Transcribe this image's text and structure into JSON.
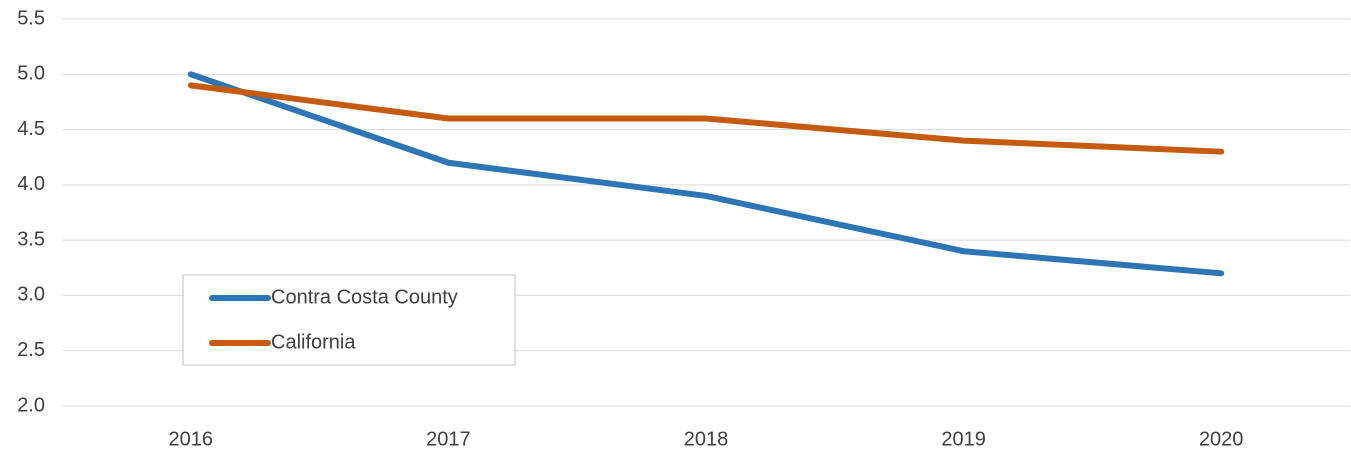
{
  "chart_data": {
    "type": "line",
    "categories": [
      "2016",
      "2017",
      "2018",
      "2019",
      "2020"
    ],
    "series": [
      {
        "name": "Contra Costa County",
        "color": "#2e75b6",
        "values": [
          5.0,
          4.2,
          3.9,
          3.4,
          3.2
        ]
      },
      {
        "name": "California",
        "color": "#c55a11",
        "values": [
          4.9,
          4.6,
          4.6,
          4.4,
          4.3
        ]
      }
    ],
    "ylim": [
      2,
      5.5
    ],
    "yticks": [
      {
        "value": 2,
        "label": "2.0"
      },
      2.5,
      {
        "value": 3,
        "label": "3.0"
      },
      3.5,
      {
        "value": 4,
        "label": "4.0"
      },
      4.5,
      {
        "value": 5,
        "label": "5.0"
      },
      5.5
    ],
    "grid": true,
    "legend": "left"
  }
}
